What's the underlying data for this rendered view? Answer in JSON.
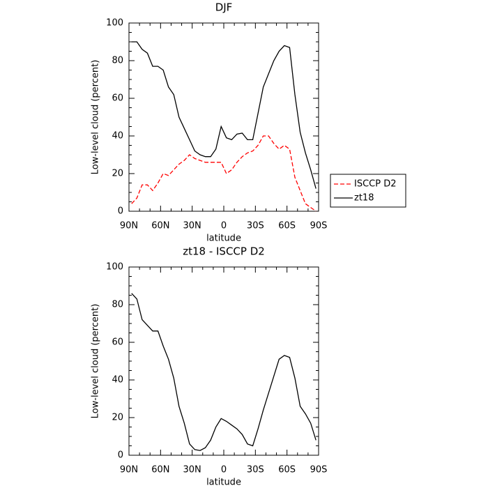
{
  "chart_data": [
    {
      "type": "line",
      "title": "DJF",
      "xlabel": "latitude",
      "ylabel": "Low-level cloud (percent)",
      "x": [
        87.5,
        82.5,
        77.5,
        72.5,
        67.5,
        62.5,
        57.5,
        52.5,
        47.5,
        42.5,
        37.5,
        32.5,
        27.5,
        22.5,
        17.5,
        12.5,
        7.5,
        2.5,
        -2.5,
        -7.5,
        -12.5,
        -17.5,
        -22.5,
        -27.5,
        -32.5,
        -37.5,
        -42.5,
        -47.5,
        -52.5,
        -57.5,
        -62.5,
        -67.5,
        -72.5,
        -77.5,
        -82.5,
        -87.5
      ],
      "series": [
        {
          "name": "ISCCP D2",
          "color": "#ff0000",
          "dashed": true,
          "values": [
            4,
            7,
            14,
            14,
            11,
            15,
            20,
            19,
            22,
            25,
            27,
            30,
            28,
            27,
            26,
            26,
            26,
            26,
            20,
            22,
            26,
            29,
            31,
            32,
            35,
            40,
            40,
            36,
            33,
            35,
            33,
            18,
            11,
            4,
            2,
            0
          ]
        },
        {
          "name": "zt18",
          "color": "#000000",
          "dashed": false,
          "values": [
            90,
            90,
            86,
            84,
            77,
            77,
            75,
            66,
            62,
            50,
            44,
            38,
            32,
            30,
            29,
            29,
            33,
            45,
            39,
            38,
            41,
            41.5,
            38,
            38,
            52,
            66,
            73,
            80,
            85,
            88,
            87,
            62,
            42,
            31,
            22,
            12
          ]
        }
      ],
      "xlim": [
        90,
        -90
      ],
      "xticks": [
        {
          "value": 90,
          "label": "90N"
        },
        {
          "value": 60,
          "label": "60N"
        },
        {
          "value": 30,
          "label": "30N"
        },
        0,
        {
          "value": -30,
          "label": "30S"
        },
        {
          "value": -60,
          "label": "60S"
        },
        {
          "value": -90,
          "label": "90S"
        }
      ],
      "ylim": [
        0,
        100
      ],
      "yticks": [
        0,
        20,
        40,
        60,
        80,
        100
      ],
      "legend": "right"
    },
    {
      "type": "line",
      "title": "zt18 - ISCCP D2",
      "xlabel": "latitude",
      "ylabel": "Low-level cloud (percent)",
      "x": [
        87.5,
        82.5,
        77.5,
        72.5,
        67.5,
        62.5,
        57.5,
        52.5,
        47.5,
        42.5,
        37.5,
        32.5,
        27.5,
        22.5,
        17.5,
        12.5,
        7.5,
        2.5,
        -2.5,
        -7.5,
        -12.5,
        -17.5,
        -22.5,
        -27.5,
        -32.5,
        -37.5,
        -42.5,
        -47.5,
        -52.5,
        -57.5,
        -62.5,
        -67.5,
        -72.5,
        -77.5,
        -82.5,
        -87.5
      ],
      "values": [
        86,
        83,
        72,
        69,
        66,
        66,
        58,
        51,
        41,
        26,
        17,
        6,
        3,
        2.5,
        4,
        8,
        15,
        19.5,
        18,
        16,
        14,
        11,
        6,
        5,
        14,
        24,
        33,
        42,
        51,
        53,
        52,
        41,
        26,
        22,
        17,
        8
      ],
      "color": "#000000",
      "xlim": [
        90,
        -90
      ],
      "xticks": [
        {
          "value": 90,
          "label": "90N"
        },
        {
          "value": 60,
          "label": "60N"
        },
        {
          "value": 30,
          "label": "30N"
        },
        0,
        {
          "value": -30,
          "label": "30S"
        },
        {
          "value": -60,
          "label": "60S"
        },
        {
          "value": -90,
          "label": "90S"
        }
      ],
      "ylim": [
        0,
        100
      ],
      "yticks": [
        0,
        20,
        40,
        60,
        80,
        100
      ]
    }
  ]
}
